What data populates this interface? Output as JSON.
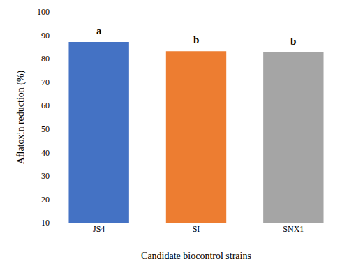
{
  "chart_data": {
    "type": "bar",
    "x_label": "Candidate biocontrol strains",
    "y_label": "Aflatoxin reduction (%)",
    "categories": [
      "JS4",
      "SI",
      "SNX1"
    ],
    "values": [
      87.2,
      83.2,
      82.8
    ],
    "colors": [
      "#4472c4",
      "#ed7d31",
      "#a5a5a5"
    ],
    "ylim": [
      10,
      100
    ],
    "yticks": [
      10,
      20,
      30,
      40,
      50,
      60,
      70,
      80,
      90,
      100
    ],
    "grid": false,
    "annotations": [
      {
        "category": "JS4",
        "text": "a"
      },
      {
        "category": "SI",
        "text": "b"
      },
      {
        "category": "SNX1",
        "text": "b"
      }
    ]
  }
}
